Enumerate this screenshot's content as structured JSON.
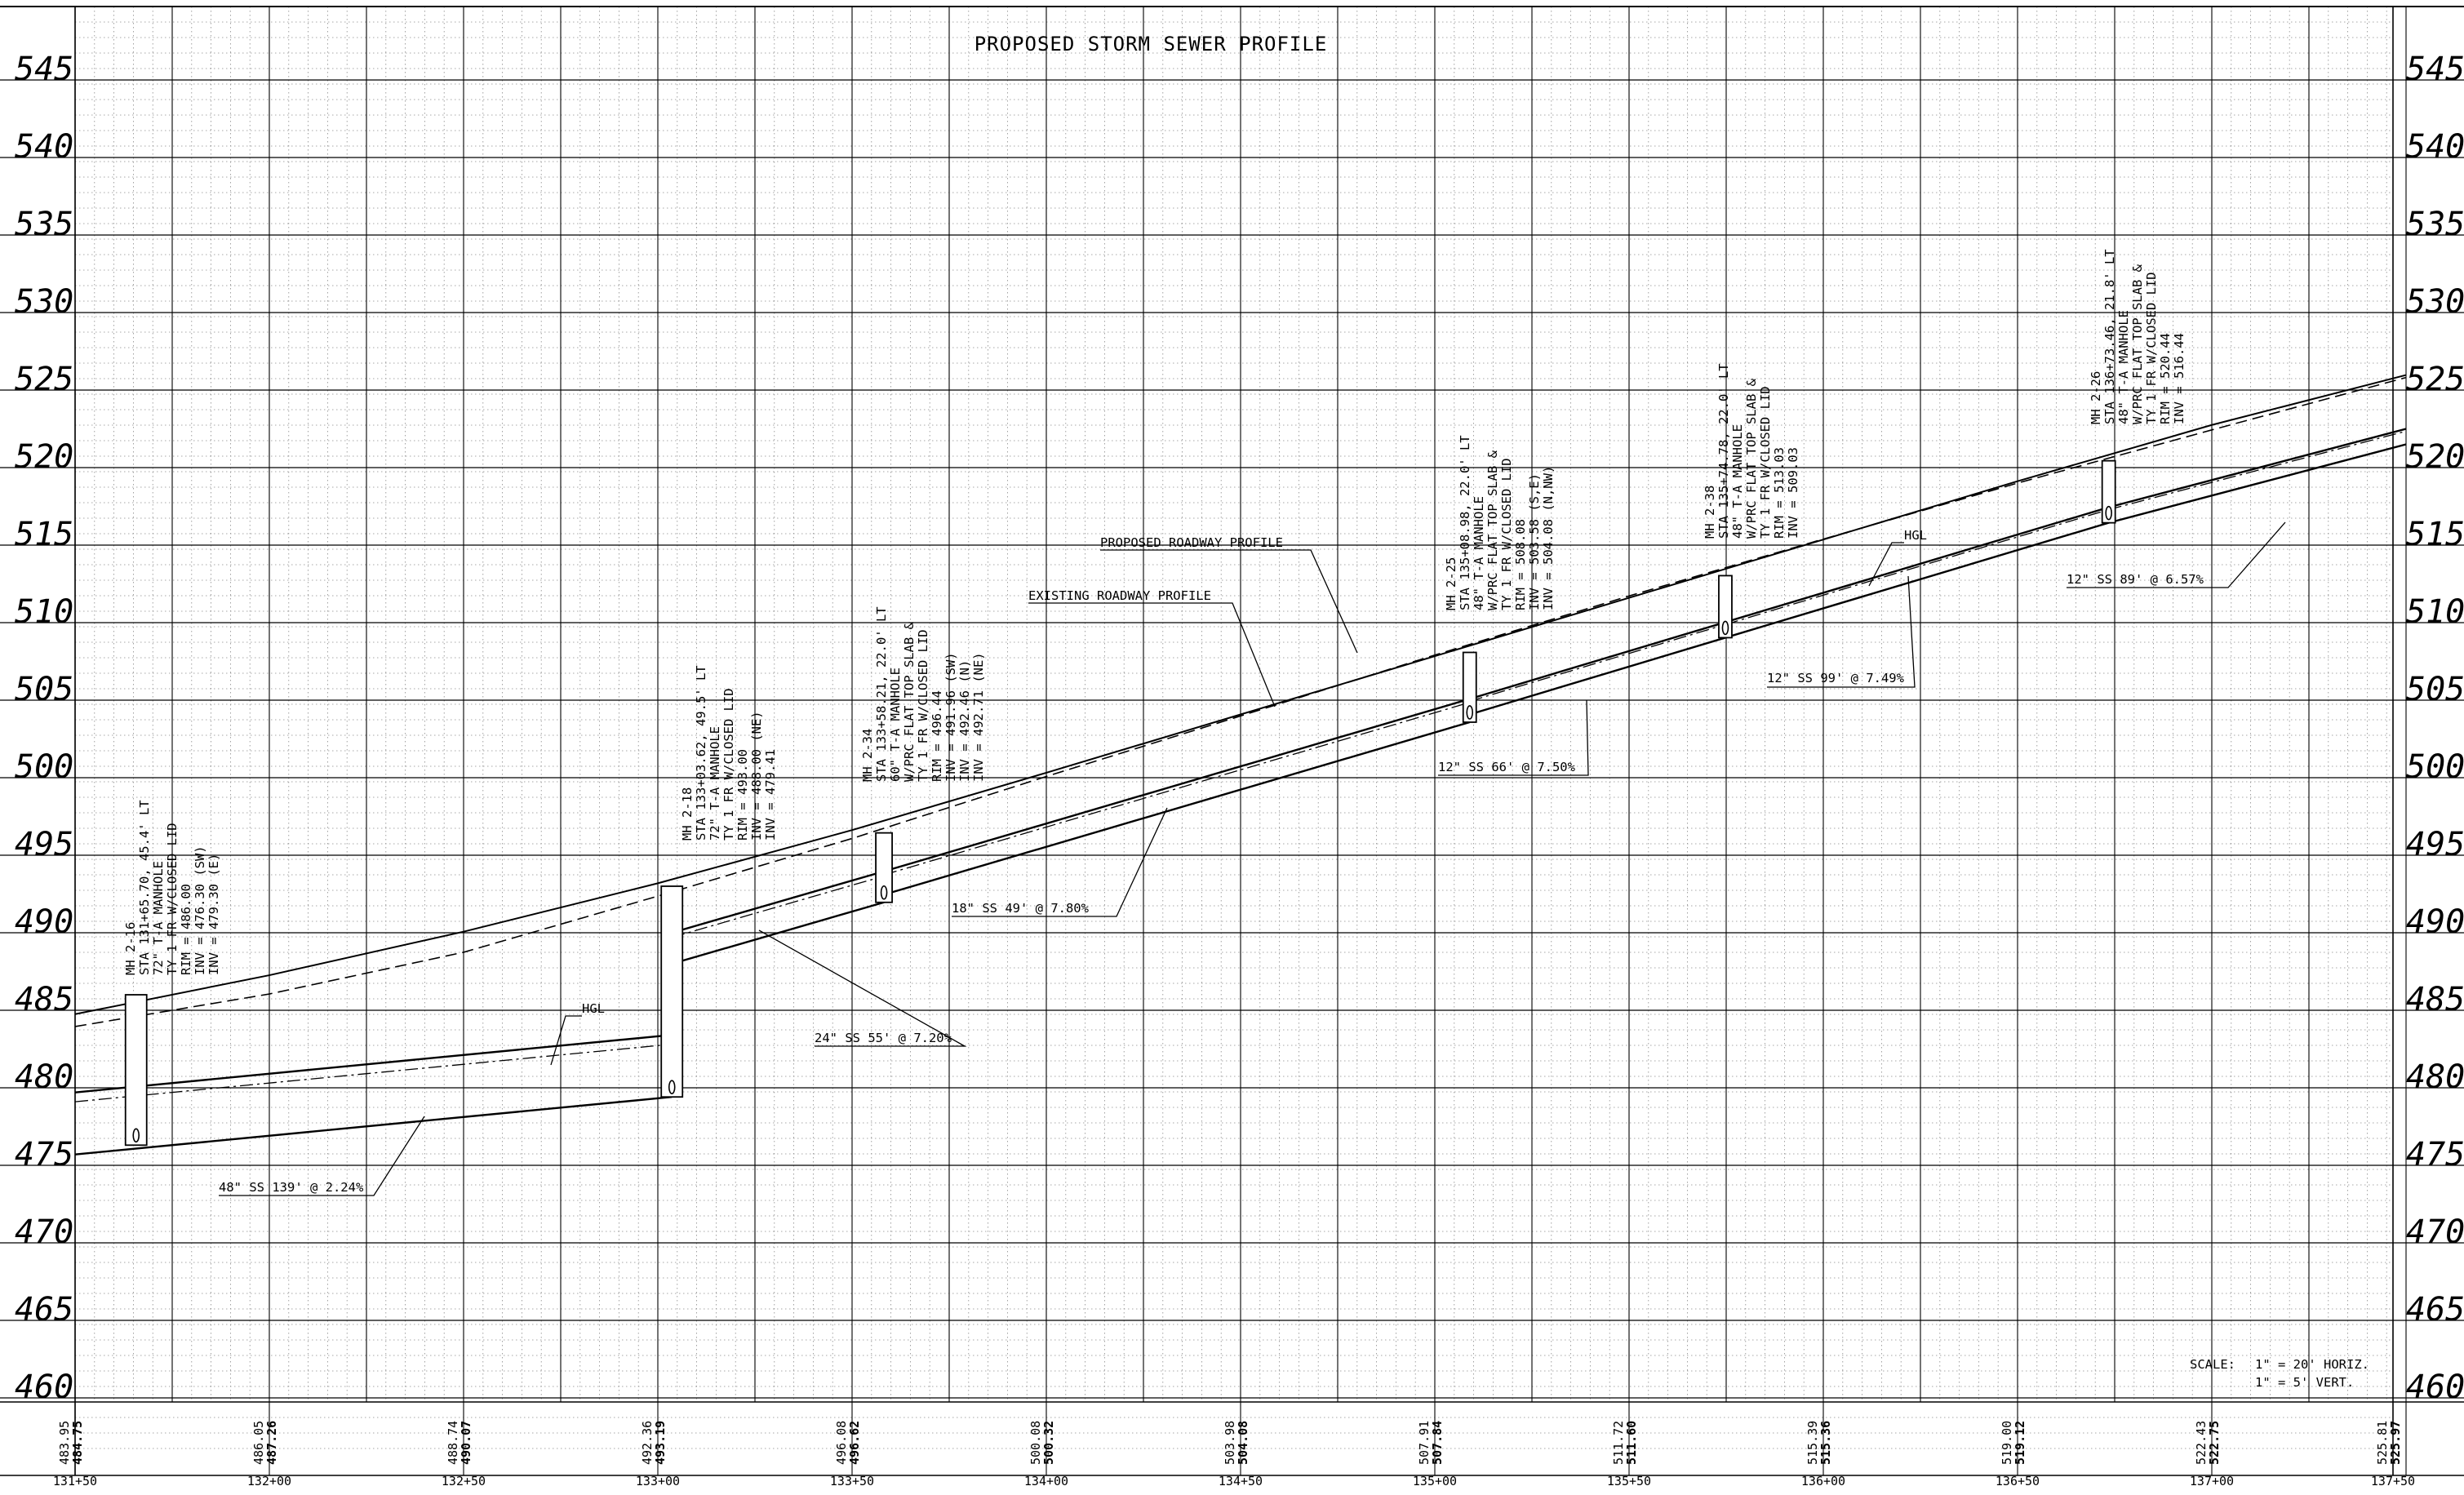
{
  "title": "PROPOSED STORM SEWER PROFILE",
  "elevations": [
    "545",
    "540",
    "535",
    "530",
    "525",
    "520",
    "515",
    "510",
    "505",
    "500",
    "495",
    "490",
    "485",
    "480",
    "475",
    "470",
    "465",
    "460"
  ],
  "stations": [
    "131+50",
    "132+00",
    "132+50",
    "133+00",
    "133+50",
    "134+00",
    "134+50",
    "135+00",
    "135+50",
    "136+00",
    "136+50",
    "137+00",
    "137+50"
  ],
  "grade_pairs": [
    {
      "existing": "483.95",
      "proposed": "484.75"
    },
    {
      "existing": "486.05",
      "proposed": "487.26"
    },
    {
      "existing": "488.74",
      "proposed": "490.07"
    },
    {
      "existing": "492.36",
      "proposed": "493.19"
    },
    {
      "existing": "496.08",
      "proposed": "496.62"
    },
    {
      "existing": "500.08",
      "proposed": "500.32"
    },
    {
      "existing": "503.98",
      "proposed": "504.08"
    },
    {
      "existing": "507.91",
      "proposed": "507.84"
    },
    {
      "existing": "511.72",
      "proposed": "511.60"
    },
    {
      "existing": "515.39",
      "proposed": "515.36"
    },
    {
      "existing": "519.00",
      "proposed": "519.12"
    },
    {
      "existing": "522.43",
      "proposed": "522.75"
    },
    {
      "existing": "525.81",
      "proposed": "525.97"
    }
  ],
  "manholes": [
    {
      "lines": [
        "MH 2-16",
        "STA 131+65.70, 45.4' LT",
        "72\" T-A MANHOLE",
        "TY 1 FR W/CLOSED LID",
        "RIM = 486.00",
        "INV = 476.30 (SW)",
        "INV = 479.30 (E)"
      ]
    },
    {
      "lines": [
        "MH 2-18",
        "STA 133+03.62, 49.5' LT",
        "72\" T-A MANHOLE",
        "TY 1 FR W/CLOSED LID",
        "RIM = 493.00",
        "INV = 488.00 (NE)",
        "INV = 479.41"
      ]
    },
    {
      "lines": [
        "MH 2-34",
        "STA 133+58.21, 22.0' LT",
        "60\" T-A MANHOLE",
        "W/PRC FLAT TOP SLAB &",
        "TY 1 FR W/CLOSED LID",
        "RIM = 496.44",
        "INV = 491.96 (SW)",
        "INV = 492.46 (N)",
        "INV = 492.71 (NE)"
      ]
    },
    {
      "lines": [
        "MH 2-25",
        "STA 135+08.98, 22.0' LT",
        "48\" T-A MANHOLE",
        "W/PRC FLAT TOP SLAB &",
        "TY 1 FR W/CLOSED LID",
        "RIM = 508.08",
        "INV = 503.58 (S,E)",
        "INV = 504.08 (N,NW)"
      ]
    },
    {
      "lines": [
        "MH 2-38",
        "STA 135+74.78, 22.0' LT",
        "48\" T-A MANHOLE",
        "W/PRC FLAT TOP SLAB &",
        "TY 1 FR W/CLOSED LID",
        "RIM = 513.03",
        "INV = 509.03"
      ]
    },
    {
      "lines": [
        "MH 2-26",
        "STA 136+73.46, 21.8' LT",
        "48\" T-A MANHOLE",
        "W/PRC FLAT TOP SLAB &",
        "TY 1 FR W/CLOSED LID",
        "RIM = 520.44",
        "INV = 516.44"
      ]
    }
  ],
  "pipes": {
    "p1": "48\" SS 139' @ 2.24%",
    "p2": "24\" SS 55' @ 7.20%",
    "p3": "18\" SS 49' @ 7.80%",
    "p4": "12\" SS 66' @ 7.50%",
    "p5": "12\" SS 99' @ 7.49%",
    "p6": "12\" SS 89' @ 6.57%"
  },
  "labels": {
    "proposed_profile": "PROPOSED ROADWAY PROFILE",
    "existing_profile": "EXISTING ROADWAY PROFILE",
    "hgl": "HGL"
  },
  "scale": {
    "label": "SCALE:",
    "horiz": "1\" = 20' HORIZ.",
    "vert": "1\" = 5' VERT."
  }
}
